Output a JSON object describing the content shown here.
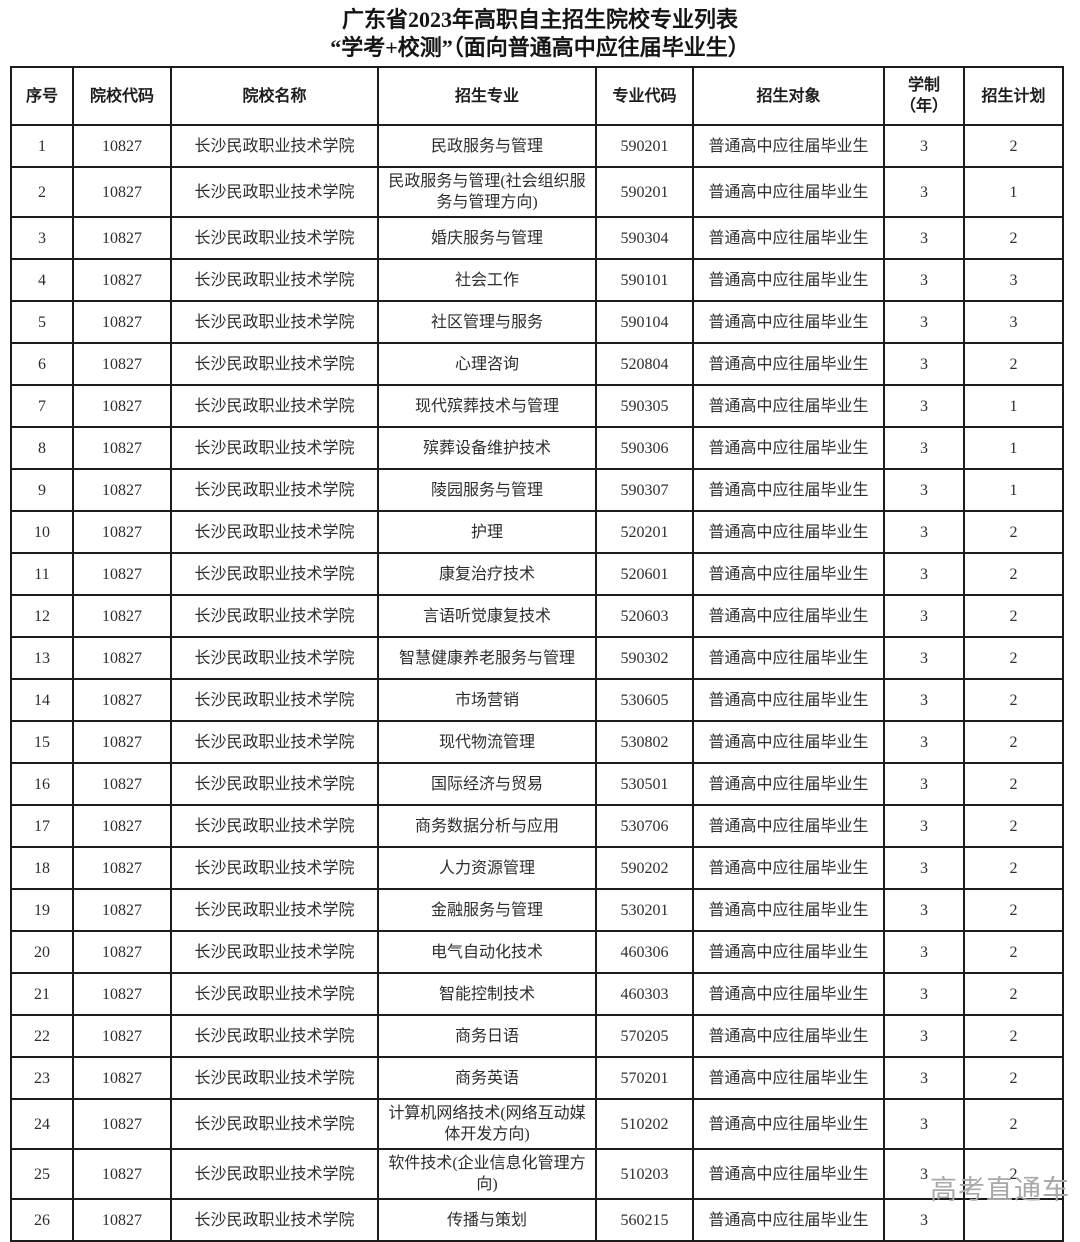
{
  "page": {
    "title": "广东省2023年高职自主招生院校专业列表",
    "subtitle": "“学考+校测”（面向普通高中应往届毕业生）"
  },
  "watermark": "高考直通车",
  "colors": {
    "border": "#1c1c1c",
    "text": "#2e2e2e",
    "watermark": "#a9a9a9",
    "background": "#ffffff"
  },
  "table": {
    "headers": [
      "序号",
      "院校代码",
      "院校名称",
      "招生专业",
      "专业代码",
      "招生对象",
      "学制\n（年）",
      "招生计划"
    ],
    "rows": [
      [
        "1",
        "10827",
        "长沙民政职业技术学院",
        "民政服务与管理",
        "590201",
        "普通高中应往届毕业生",
        "3",
        "2"
      ],
      [
        "2",
        "10827",
        "长沙民政职业技术学院",
        "民政服务与管理(社会组织服务与管理方向)",
        "590201",
        "普通高中应往届毕业生",
        "3",
        "1"
      ],
      [
        "3",
        "10827",
        "长沙民政职业技术学院",
        "婚庆服务与管理",
        "590304",
        "普通高中应往届毕业生",
        "3",
        "2"
      ],
      [
        "4",
        "10827",
        "长沙民政职业技术学院",
        "社会工作",
        "590101",
        "普通高中应往届毕业生",
        "3",
        "3"
      ],
      [
        "5",
        "10827",
        "长沙民政职业技术学院",
        "社区管理与服务",
        "590104",
        "普通高中应往届毕业生",
        "3",
        "3"
      ],
      [
        "6",
        "10827",
        "长沙民政职业技术学院",
        "心理咨询",
        "520804",
        "普通高中应往届毕业生",
        "3",
        "2"
      ],
      [
        "7",
        "10827",
        "长沙民政职业技术学院",
        "现代殡葬技术与管理",
        "590305",
        "普通高中应往届毕业生",
        "3",
        "1"
      ],
      [
        "8",
        "10827",
        "长沙民政职业技术学院",
        "殡葬设备维护技术",
        "590306",
        "普通高中应往届毕业生",
        "3",
        "1"
      ],
      [
        "9",
        "10827",
        "长沙民政职业技术学院",
        "陵园服务与管理",
        "590307",
        "普通高中应往届毕业生",
        "3",
        "1"
      ],
      [
        "10",
        "10827",
        "长沙民政职业技术学院",
        "护理",
        "520201",
        "普通高中应往届毕业生",
        "3",
        "2"
      ],
      [
        "11",
        "10827",
        "长沙民政职业技术学院",
        "康复治疗技术",
        "520601",
        "普通高中应往届毕业生",
        "3",
        "2"
      ],
      [
        "12",
        "10827",
        "长沙民政职业技术学院",
        "言语听觉康复技术",
        "520603",
        "普通高中应往届毕业生",
        "3",
        "2"
      ],
      [
        "13",
        "10827",
        "长沙民政职业技术学院",
        "智慧健康养老服务与管理",
        "590302",
        "普通高中应往届毕业生",
        "3",
        "2"
      ],
      [
        "14",
        "10827",
        "长沙民政职业技术学院",
        "市场营销",
        "530605",
        "普通高中应往届毕业生",
        "3",
        "2"
      ],
      [
        "15",
        "10827",
        "长沙民政职业技术学院",
        "现代物流管理",
        "530802",
        "普通高中应往届毕业生",
        "3",
        "2"
      ],
      [
        "16",
        "10827",
        "长沙民政职业技术学院",
        "国际经济与贸易",
        "530501",
        "普通高中应往届毕业生",
        "3",
        "2"
      ],
      [
        "17",
        "10827",
        "长沙民政职业技术学院",
        "商务数据分析与应用",
        "530706",
        "普通高中应往届毕业生",
        "3",
        "2"
      ],
      [
        "18",
        "10827",
        "长沙民政职业技术学院",
        "人力资源管理",
        "590202",
        "普通高中应往届毕业生",
        "3",
        "2"
      ],
      [
        "19",
        "10827",
        "长沙民政职业技术学院",
        "金融服务与管理",
        "530201",
        "普通高中应往届毕业生",
        "3",
        "2"
      ],
      [
        "20",
        "10827",
        "长沙民政职业技术学院",
        "电气自动化技术",
        "460306",
        "普通高中应往届毕业生",
        "3",
        "2"
      ],
      [
        "21",
        "10827",
        "长沙民政职业技术学院",
        "智能控制技术",
        "460303",
        "普通高中应往届毕业生",
        "3",
        "2"
      ],
      [
        "22",
        "10827",
        "长沙民政职业技术学院",
        "商务日语",
        "570205",
        "普通高中应往届毕业生",
        "3",
        "2"
      ],
      [
        "23",
        "10827",
        "长沙民政职业技术学院",
        "商务英语",
        "570201",
        "普通高中应往届毕业生",
        "3",
        "2"
      ],
      [
        "24",
        "10827",
        "长沙民政职业技术学院",
        "计算机网络技术(网络互动媒体开发方向)",
        "510202",
        "普通高中应往届毕业生",
        "3",
        "2"
      ],
      [
        "25",
        "10827",
        "长沙民政职业技术学院",
        "软件技术(企业信息化管理方向)",
        "510203",
        "普通高中应往届毕业生",
        "3",
        "2"
      ],
      [
        "26",
        "10827",
        "长沙民政职业技术学院",
        "传播与策划",
        "560215",
        "普通高中应往届毕业生",
        "3",
        ""
      ]
    ]
  }
}
